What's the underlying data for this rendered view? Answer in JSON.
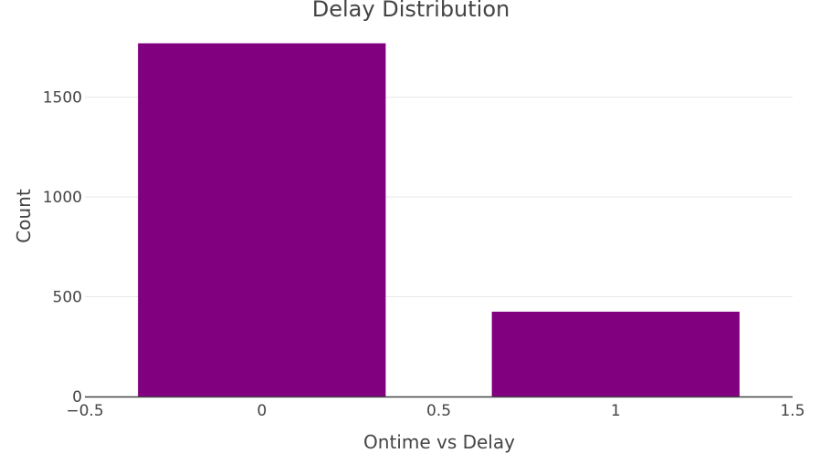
{
  "chart_data": {
    "type": "bar",
    "title": "Delay Distribution",
    "xlabel": "Ontime vs Delay",
    "ylabel": "Count",
    "x": [
      0,
      1
    ],
    "values": [
      1770,
      425
    ],
    "bar_width": 0.7,
    "xlim": [
      -0.5,
      1.5
    ],
    "ylim": [
      0,
      1850
    ],
    "x_ticks": [
      -0.5,
      0,
      0.5,
      1,
      1.5
    ],
    "x_tick_labels": [
      "−0.5",
      "0",
      "0.5",
      "1",
      "1.5"
    ],
    "y_ticks": [
      0,
      500,
      1000,
      1500
    ],
    "y_tick_labels": [
      "0",
      "500",
      "1000",
      "1500"
    ],
    "grid": true,
    "bar_color": "#800080"
  }
}
